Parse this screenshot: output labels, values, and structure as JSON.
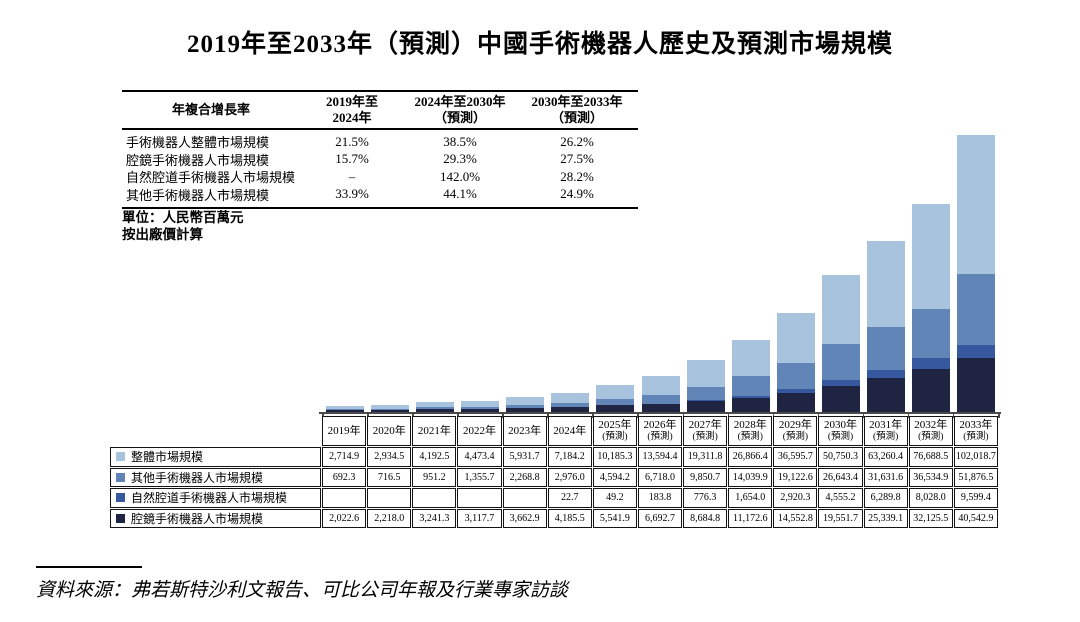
{
  "title": "2019年至2033年（預測）中國手術機器人歷史及預測市場規模",
  "cagr_table": {
    "headers": [
      "年複合增長率",
      "2019年至\n2024年",
      "2024年至2030年\n（預測）",
      "2030年至2033年\n（預測）"
    ],
    "rows": [
      {
        "label": "手術機器人整體市場規模",
        "values": [
          "21.5%",
          "38.5%",
          "26.2%"
        ]
      },
      {
        "label": "腔鏡手術機器人市場規模",
        "values": [
          "15.7%",
          "29.3%",
          "27.5%"
        ]
      },
      {
        "label": "自然腔道手術機器人市場規模",
        "values": [
          "–",
          "142.0%",
          "28.2%"
        ]
      },
      {
        "label": "其他手術機器人市場規模",
        "values": [
          "33.9%",
          "44.1%",
          "24.9%"
        ]
      }
    ]
  },
  "unit_note_line1": "單位：人民幣百萬元",
  "unit_note_line2": "按出廠價計算",
  "source_note": "資料來源：弗若斯特沙利文報告、可比公司年報及行業專家訪談",
  "chart_data": {
    "type": "bar",
    "stacked": true,
    "unit": "人民幣百萬元",
    "title": "2019年至2033年（預測）中國手術機器人歷史及預測市場規模",
    "categories": [
      "2019年",
      "2020年",
      "2021年",
      "2022年",
      "2023年",
      "2024年",
      "2025年",
      "2026年",
      "2027年",
      "2028年",
      "2029年",
      "2030年",
      "2031年",
      "2032年",
      "2033年"
    ],
    "forecast_from_index": 6,
    "forecast_label": "(預測)",
    "y_axis_visible": false,
    "grid": false,
    "legend_position": "table-left",
    "series": [
      {
        "name": "整體市場規模",
        "color": "#a8c3de",
        "values": [
          2714.9,
          2934.5,
          4192.5,
          4473.4,
          5931.7,
          7184.2,
          10185.3,
          13594.4,
          19311.8,
          26866.4,
          36595.7,
          50750.3,
          63260.4,
          76688.5,
          102018.7
        ]
      },
      {
        "name": "其他手術機器人市場規模",
        "color": "#6285b8",
        "values": [
          692.3,
          716.5,
          951.2,
          1355.7,
          2268.8,
          2976.0,
          4594.2,
          6718.0,
          9850.7,
          14039.9,
          19122.6,
          26643.4,
          31631.6,
          36534.9,
          51876.5
        ]
      },
      {
        "name": "自然腔道手術機器人市場規模",
        "color": "#35589f",
        "values": [
          null,
          null,
          null,
          null,
          null,
          22.7,
          49.2,
          183.8,
          776.3,
          1654.0,
          2920.3,
          4555.2,
          6289.8,
          8028.0,
          9599.4
        ]
      },
      {
        "name": "腔鏡手術機器人市場規模",
        "color": "#1f2442",
        "values": [
          2022.6,
          2218.0,
          3241.3,
          3117.7,
          3662.9,
          4185.5,
          5541.9,
          6692.7,
          8684.8,
          11172.6,
          14552.8,
          19551.7,
          25339.1,
          32125.5,
          40542.9
        ]
      }
    ],
    "stack_order_bottom_to_top": [
      "腔鏡手術機器人市場規模",
      "自然腔道手術機器人市場規模",
      "其他手術機器人市場規模",
      "整體市場規模"
    ]
  }
}
